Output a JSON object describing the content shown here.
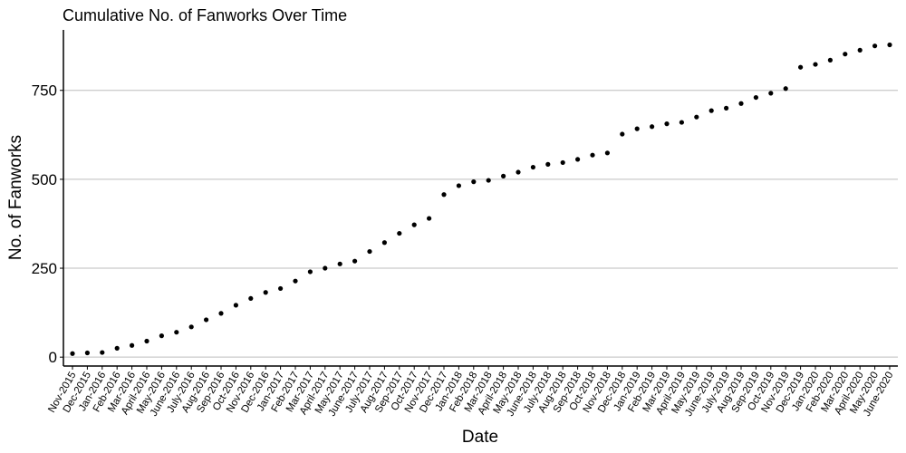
{
  "chart_data": {
    "type": "scatter",
    "title": "Cumulative No. of Fanworks Over Time",
    "xlabel": "Date",
    "ylabel": "No. of Fanworks",
    "ylim": [
      -25,
      920
    ],
    "yticks": [
      0,
      250,
      500,
      750
    ],
    "grid": "horizontal major lines",
    "categories": [
      "Nov-2015",
      "Dec-2015",
      "Jan-2016",
      "Feb-2016",
      "Mar-2016",
      "April-2016",
      "May-2016",
      "June-2016",
      "July-2016",
      "Aug-2016",
      "Sep-2016",
      "Oct-2016",
      "Nov-2016",
      "Dec-2016",
      "Jan-2017",
      "Feb-2017",
      "Mar-2017",
      "April-2017",
      "May-2017",
      "June-2017",
      "July-2017",
      "Aug-2017",
      "Sep-2017",
      "Oct-2017",
      "Nov-2017",
      "Dec-2017",
      "Jan-2018",
      "Feb-2018",
      "Mar-2018",
      "April-2018",
      "May-2018",
      "June-2018",
      "July-2018",
      "Aug-2018",
      "Sep-2018",
      "Oct-2018",
      "Nov-2018",
      "Dec-2018",
      "Jan-2019",
      "Feb-2019",
      "Mar-2019",
      "April-2019",
      "May-2019",
      "June-2019",
      "July-2019",
      "Aug-2019",
      "Sep-2019",
      "Oct-2019",
      "Nov-2019",
      "Dec-2019",
      "Jan-2020",
      "Feb-2020",
      "Mar-2020",
      "April-2020",
      "May-2020",
      "June-2020"
    ],
    "values": [
      10,
      12,
      13,
      25,
      33,
      45,
      60,
      70,
      85,
      105,
      123,
      146,
      165,
      182,
      193,
      214,
      240,
      250,
      262,
      270,
      297,
      322,
      348,
      372,
      390,
      457,
      482,
      493,
      497,
      509,
      520,
      534,
      542,
      547,
      556,
      568,
      574,
      627,
      642,
      648,
      656,
      660,
      675,
      693,
      700,
      713,
      730,
      742,
      755,
      815,
      823,
      835,
      852,
      863,
      875,
      878
    ]
  },
  "colors": {
    "point": "#000000",
    "grid": "#bebebe",
    "axis": "#000000"
  }
}
